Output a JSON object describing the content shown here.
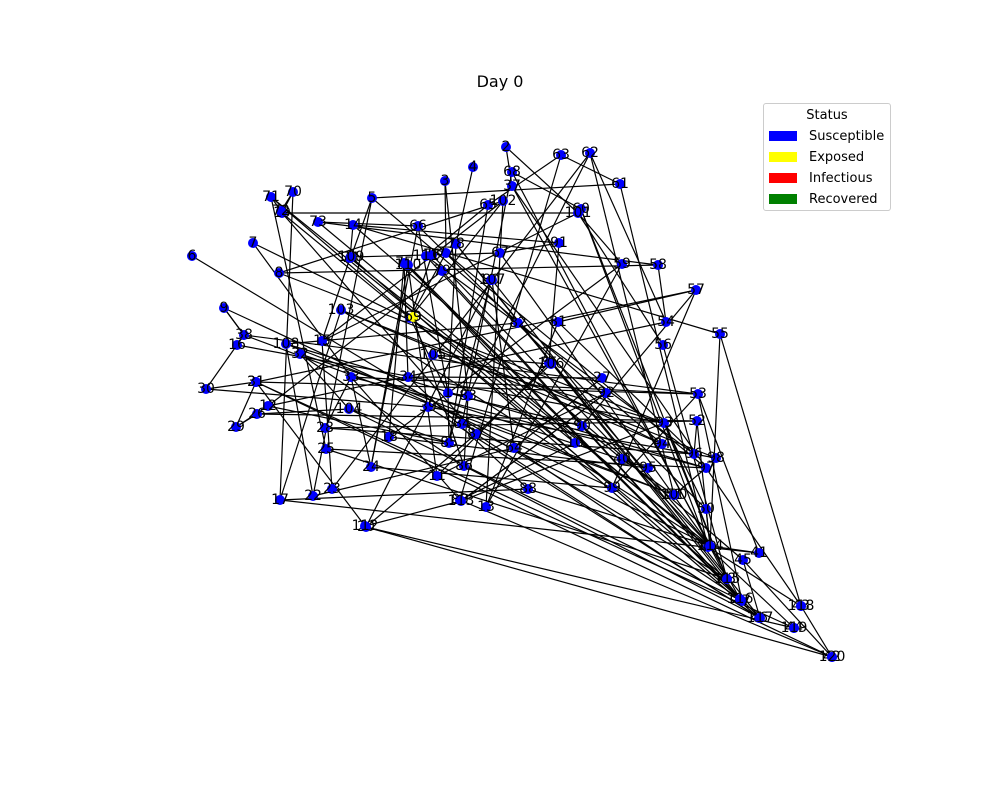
{
  "figure": {
    "title": "Day 0"
  },
  "legend": {
    "title": "Status",
    "items": [
      {
        "label": "Susceptible",
        "color": "#0000ff"
      },
      {
        "label": "Exposed",
        "color": "#ffff00"
      },
      {
        "label": "Infectious",
        "color": "#ff0000"
      },
      {
        "label": "Recovered",
        "color": "#008000"
      }
    ]
  },
  "colors": {
    "Susceptible": "#0000ff",
    "Exposed": "#ffff00",
    "Infectious": "#ff0000",
    "Recovered": "#008000",
    "edge": "#000000"
  },
  "graph": {
    "nodes": [
      {
        "id": "1",
        "status": "Susceptible"
      },
      {
        "id": "2",
        "status": "Susceptible"
      },
      {
        "id": "3",
        "status": "Susceptible"
      },
      {
        "id": "4",
        "status": "Susceptible"
      },
      {
        "id": "5",
        "status": "Susceptible"
      },
      {
        "id": "6",
        "status": "Susceptible"
      },
      {
        "id": "7",
        "status": "Susceptible"
      },
      {
        "id": "8",
        "status": "Susceptible"
      },
      {
        "id": "9",
        "status": "Susceptible"
      },
      {
        "id": "10",
        "status": "Susceptible"
      },
      {
        "id": "11",
        "status": "Susceptible"
      },
      {
        "id": "12",
        "status": "Susceptible"
      },
      {
        "id": "13",
        "status": "Susceptible"
      },
      {
        "id": "14",
        "status": "Susceptible"
      },
      {
        "id": "15",
        "status": "Susceptible"
      },
      {
        "id": "16",
        "status": "Susceptible"
      },
      {
        "id": "17",
        "status": "Susceptible"
      },
      {
        "id": "18",
        "status": "Susceptible"
      },
      {
        "id": "19",
        "status": "Susceptible"
      },
      {
        "id": "20",
        "status": "Susceptible"
      },
      {
        "id": "21",
        "status": "Susceptible"
      },
      {
        "id": "22",
        "status": "Susceptible"
      },
      {
        "id": "23",
        "status": "Susceptible"
      },
      {
        "id": "24",
        "status": "Susceptible"
      },
      {
        "id": "25",
        "status": "Susceptible"
      },
      {
        "id": "26",
        "status": "Susceptible"
      },
      {
        "id": "27",
        "status": "Susceptible"
      },
      {
        "id": "28",
        "status": "Susceptible"
      },
      {
        "id": "29",
        "status": "Susceptible"
      },
      {
        "id": "30",
        "status": "Susceptible"
      },
      {
        "id": "31",
        "status": "Susceptible"
      },
      {
        "id": "32",
        "status": "Susceptible"
      },
      {
        "id": "33",
        "status": "Susceptible"
      },
      {
        "id": "34",
        "status": "Susceptible"
      },
      {
        "id": "35",
        "status": "Susceptible"
      },
      {
        "id": "36",
        "status": "Susceptible"
      },
      {
        "id": "37",
        "status": "Susceptible"
      },
      {
        "id": "38",
        "status": "Susceptible"
      },
      {
        "id": "39",
        "status": "Susceptible"
      },
      {
        "id": "40",
        "status": "Susceptible"
      },
      {
        "id": "41",
        "status": "Susceptible"
      },
      {
        "id": "42",
        "status": "Susceptible"
      },
      {
        "id": "43",
        "status": "Susceptible"
      },
      {
        "id": "44",
        "status": "Susceptible"
      },
      {
        "id": "45",
        "status": "Susceptible"
      },
      {
        "id": "46",
        "status": "Susceptible"
      },
      {
        "id": "47",
        "status": "Susceptible"
      },
      {
        "id": "48",
        "status": "Susceptible"
      },
      {
        "id": "49",
        "status": "Susceptible"
      },
      {
        "id": "50",
        "status": "Susceptible"
      },
      {
        "id": "51",
        "status": "Susceptible"
      },
      {
        "id": "52",
        "status": "Susceptible"
      },
      {
        "id": "53",
        "status": "Susceptible"
      },
      {
        "id": "54",
        "status": "Susceptible"
      },
      {
        "id": "55",
        "status": "Susceptible"
      },
      {
        "id": "56",
        "status": "Susceptible"
      },
      {
        "id": "57",
        "status": "Susceptible"
      },
      {
        "id": "58",
        "status": "Susceptible"
      },
      {
        "id": "59",
        "status": "Susceptible"
      },
      {
        "id": "60",
        "status": "Susceptible"
      },
      {
        "id": "61",
        "status": "Susceptible"
      },
      {
        "id": "62",
        "status": "Susceptible"
      },
      {
        "id": "63",
        "status": "Susceptible"
      },
      {
        "id": "64",
        "status": "Susceptible"
      },
      {
        "id": "65",
        "status": "Susceptible"
      },
      {
        "id": "66",
        "status": "Susceptible"
      },
      {
        "id": "67",
        "status": "Susceptible"
      },
      {
        "id": "68",
        "status": "Susceptible"
      },
      {
        "id": "69",
        "status": "Exposed"
      },
      {
        "id": "70",
        "status": "Susceptible"
      },
      {
        "id": "71",
        "status": "Susceptible"
      },
      {
        "id": "72",
        "status": "Susceptible"
      },
      {
        "id": "73",
        "status": "Susceptible"
      },
      {
        "id": "74",
        "status": "Susceptible"
      },
      {
        "id": "75",
        "status": "Susceptible"
      },
      {
        "id": "76",
        "status": "Susceptible"
      },
      {
        "id": "77",
        "status": "Susceptible"
      },
      {
        "id": "78",
        "status": "Susceptible"
      },
      {
        "id": "79",
        "status": "Susceptible"
      },
      {
        "id": "80",
        "status": "Susceptible"
      },
      {
        "id": "81",
        "status": "Susceptible"
      },
      {
        "id": "82",
        "status": "Susceptible"
      },
      {
        "id": "83",
        "status": "Susceptible"
      },
      {
        "id": "84",
        "status": "Susceptible"
      },
      {
        "id": "85",
        "status": "Susceptible"
      },
      {
        "id": "86",
        "status": "Susceptible"
      },
      {
        "id": "87",
        "status": "Susceptible"
      },
      {
        "id": "88",
        "status": "Susceptible"
      },
      {
        "id": "89",
        "status": "Susceptible"
      },
      {
        "id": "90",
        "status": "Susceptible"
      },
      {
        "id": "91",
        "status": "Susceptible"
      },
      {
        "id": "92",
        "status": "Susceptible"
      },
      {
        "id": "93",
        "status": "Susceptible"
      },
      {
        "id": "94",
        "status": "Susceptible"
      },
      {
        "id": "95",
        "status": "Susceptible"
      },
      {
        "id": "96",
        "status": "Susceptible"
      },
      {
        "id": "97",
        "status": "Susceptible"
      },
      {
        "id": "98",
        "status": "Susceptible"
      },
      {
        "id": "99",
        "status": "Susceptible"
      },
      {
        "id": "100",
        "status": "Susceptible"
      },
      {
        "id": "101",
        "status": "Susceptible"
      },
      {
        "id": "102",
        "status": "Susceptible"
      },
      {
        "id": "103",
        "status": "Susceptible"
      },
      {
        "id": "104",
        "status": "Susceptible"
      },
      {
        "id": "105",
        "status": "Susceptible"
      },
      {
        "id": "106",
        "status": "Susceptible"
      },
      {
        "id": "107",
        "status": "Susceptible"
      },
      {
        "id": "108",
        "status": "Susceptible"
      },
      {
        "id": "109",
        "status": "Susceptible"
      },
      {
        "id": "110",
        "status": "Susceptible"
      },
      {
        "id": "111",
        "status": "Susceptible"
      },
      {
        "id": "112",
        "status": "Susceptible"
      },
      {
        "id": "113",
        "status": "Susceptible"
      },
      {
        "id": "114",
        "status": "Susceptible"
      },
      {
        "id": "115",
        "status": "Susceptible"
      },
      {
        "id": "116",
        "status": "Susceptible"
      },
      {
        "id": "117",
        "status": "Susceptible"
      },
      {
        "id": "118",
        "status": "Susceptible"
      },
      {
        "id": "119",
        "status": "Susceptible"
      },
      {
        "id": "120",
        "status": "Susceptible"
      }
    ]
  }
}
